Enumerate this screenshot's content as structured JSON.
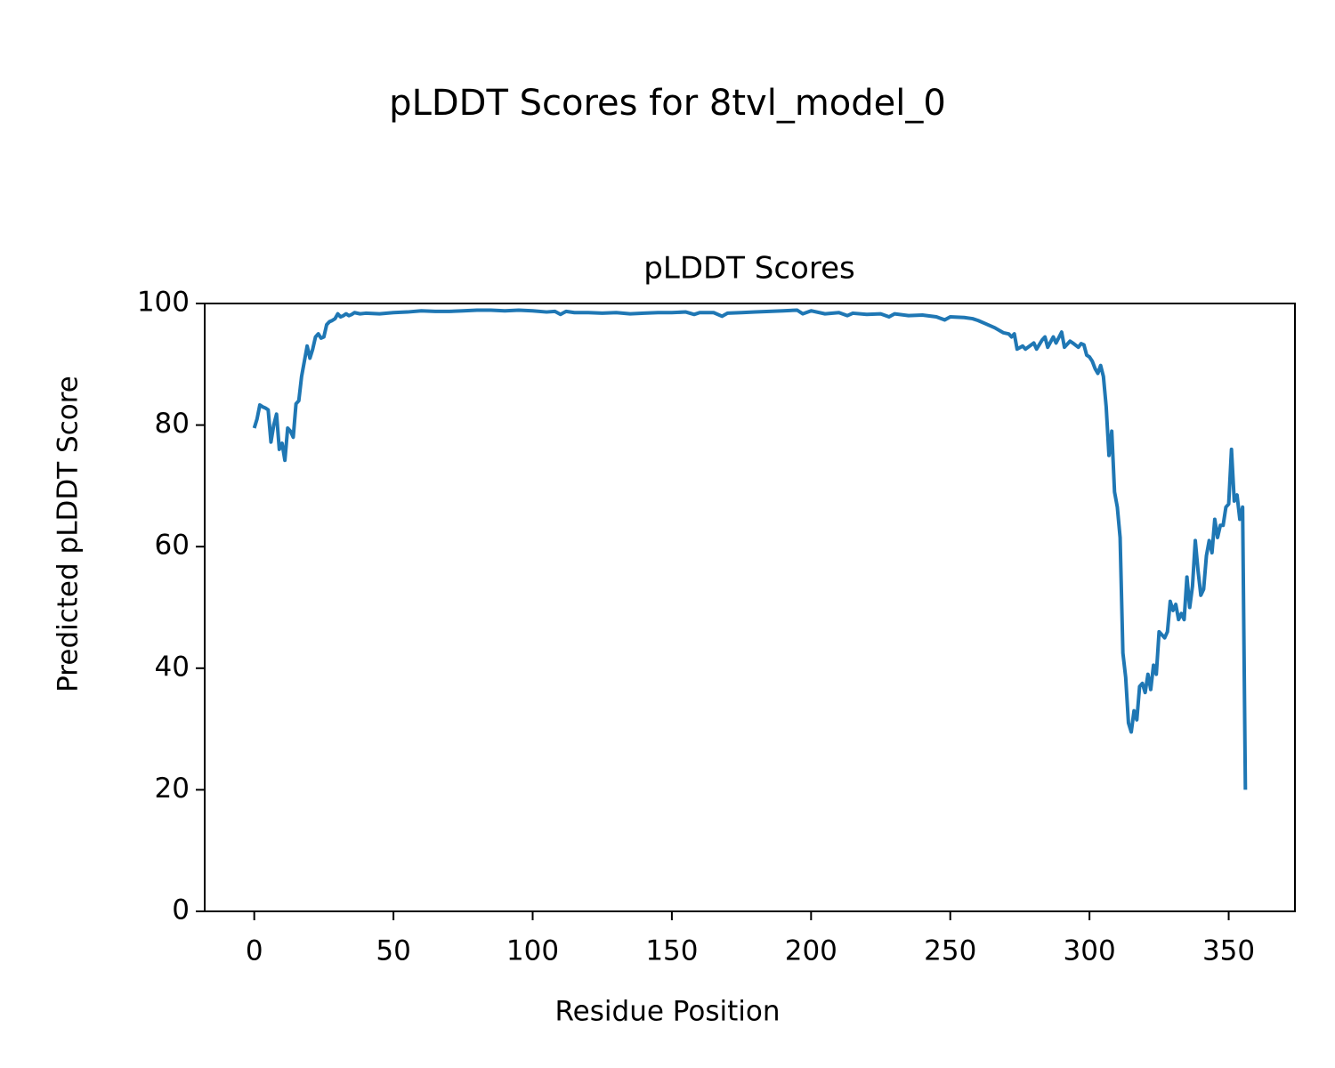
{
  "chart_data": {
    "type": "line",
    "title": "pLDDT Scores for 8tvl_model_0",
    "subtitle": "pLDDT Scores",
    "xlabel": "Residue Position",
    "ylabel": "Predicted pLDDT Score",
    "color": "#1f77b4",
    "xlim": [
      -17.8,
      373.8
    ],
    "ylim": [
      0,
      100
    ],
    "xticks": [
      0,
      50,
      100,
      150,
      200,
      250,
      300,
      350
    ],
    "yticks": [
      0,
      20,
      40,
      60,
      80,
      100
    ],
    "x": [
      0,
      1,
      2,
      3,
      4,
      5,
      6,
      7,
      8,
      9,
      10,
      11,
      12,
      13,
      14,
      15,
      16,
      17,
      18,
      19,
      20,
      21,
      22,
      23,
      24,
      25,
      26,
      27,
      28,
      29,
      30,
      31,
      32,
      33,
      34,
      35,
      36,
      38,
      40,
      45,
      50,
      55,
      60,
      65,
      70,
      75,
      80,
      85,
      90,
      95,
      100,
      105,
      108,
      110,
      112,
      115,
      120,
      125,
      130,
      135,
      140,
      145,
      150,
      155,
      158,
      160,
      165,
      168,
      170,
      175,
      180,
      185,
      190,
      195,
      197,
      200,
      205,
      210,
      213,
      215,
      220,
      225,
      228,
      230,
      235,
      240,
      245,
      248,
      250,
      255,
      258,
      260,
      263,
      266,
      269,
      271,
      272,
      273,
      274,
      276,
      277,
      280,
      281,
      283,
      284,
      285,
      287,
      288,
      290,
      291,
      293,
      294,
      296,
      297,
      298,
      299,
      300,
      301,
      302,
      303,
      304,
      305,
      306,
      307,
      308,
      309,
      310,
      311,
      312,
      313,
      314,
      315,
      316,
      317,
      318,
      319,
      320,
      321,
      322,
      323,
      324,
      325,
      326,
      327,
      328,
      329,
      330,
      331,
      332,
      333,
      334,
      335,
      336,
      337,
      338,
      339,
      340,
      341,
      342,
      343,
      344,
      345,
      346,
      347,
      348,
      349,
      350,
      351,
      352,
      353,
      354,
      355,
      356
    ],
    "values": [
      79.5,
      81,
      83.3,
      83,
      82.8,
      82.5,
      77.2,
      80,
      81.8,
      76,
      77,
      74.2,
      79.5,
      79,
      78,
      83.5,
      84,
      88,
      90.5,
      93,
      91,
      92.5,
      94.5,
      95,
      94.3,
      94.5,
      96.5,
      97,
      97.2,
      97.5,
      98.3,
      97.8,
      98,
      98.3,
      98,
      98.2,
      98.5,
      98.3,
      98.4,
      98.3,
      98.5,
      98.6,
      98.8,
      98.7,
      98.7,
      98.8,
      98.9,
      98.9,
      98.8,
      98.9,
      98.8,
      98.6,
      98.7,
      98.2,
      98.7,
      98.5,
      98.5,
      98.4,
      98.5,
      98.3,
      98.4,
      98.5,
      98.5,
      98.6,
      98.2,
      98.5,
      98.5,
      97.9,
      98.4,
      98.5,
      98.6,
      98.7,
      98.8,
      98.9,
      98.3,
      98.8,
      98.3,
      98.5,
      98,
      98.4,
      98.2,
      98.3,
      97.8,
      98.3,
      98,
      98.1,
      97.8,
      97.3,
      97.8,
      97.7,
      97.5,
      97.2,
      96.6,
      96,
      95.2,
      95,
      94.5,
      95,
      92.5,
      93,
      92.5,
      93.5,
      92.5,
      94,
      94.5,
      92.8,
      94.5,
      93.5,
      95.3,
      92.8,
      93.8,
      93.5,
      92.8,
      93.4,
      93.2,
      91.5,
      91.2,
      90.5,
      89.3,
      88.5,
      89.8,
      88,
      83,
      75,
      79,
      69,
      66.5,
      61.5,
      42.5,
      38.5,
      31,
      29.5,
      33,
      31.5,
      37,
      37.5,
      36,
      39,
      36.5,
      40.5,
      39,
      46,
      45.5,
      45,
      46,
      51,
      49.5,
      50.5,
      48,
      49,
      48,
      55,
      50,
      53.5,
      61,
      56,
      52,
      53,
      58.5,
      61,
      59,
      64.5,
      61.5,
      63.5,
      63.5,
      66.5,
      67,
      76,
      67.5,
      68.5,
      64.5,
      66.5,
      20
    ]
  }
}
